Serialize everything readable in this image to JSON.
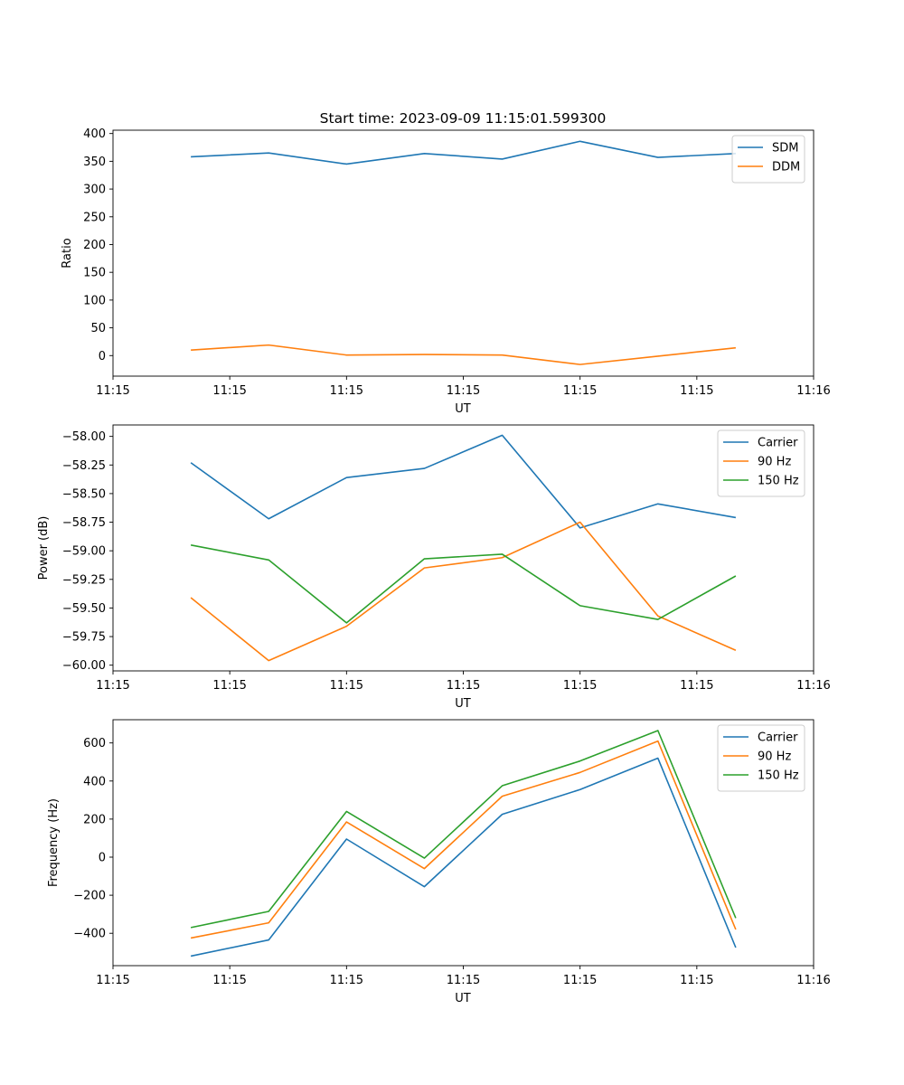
{
  "figure": {
    "title": "Start time: 2023-09-09 11:15:01.599300"
  },
  "chart_data": [
    {
      "type": "line",
      "title": "Start time: 2023-09-09 11:15:01.599300",
      "xlabel": "UT",
      "ylabel": "Ratio",
      "x": [
        0.5,
        1.0,
        1.5,
        2.0,
        2.5,
        3.0,
        3.5,
        4.0
      ],
      "xlim": [
        0.0,
        4.5
      ],
      "xticks": [
        0.0,
        0.75,
        1.5,
        2.25,
        3.0,
        3.75,
        4.5
      ],
      "xtick_labels": [
        "11:15",
        "11:15",
        "11:15",
        "11:15",
        "11:15",
        "11:15",
        "11:16"
      ],
      "ylim": [
        -37,
        406
      ],
      "yticks": [
        0,
        50,
        100,
        150,
        200,
        250,
        300,
        350,
        400
      ],
      "ytick_labels": [
        "0",
        "50",
        "100",
        "150",
        "200",
        "250",
        "300",
        "350",
        "400"
      ],
      "legend": "top-right",
      "series": [
        {
          "name": "SDM",
          "color": "#1f77b4",
          "values": [
            358,
            365,
            345,
            364,
            354,
            386,
            357,
            364
          ]
        },
        {
          "name": "DDM",
          "color": "#ff7f0e",
          "values": [
            10,
            19,
            1,
            2,
            1,
            -16,
            -1,
            14
          ]
        }
      ]
    },
    {
      "type": "line",
      "title": "",
      "xlabel": "UT",
      "ylabel": "Power (dB)",
      "x": [
        0.5,
        1.0,
        1.5,
        2.0,
        2.5,
        3.0,
        3.5,
        4.0
      ],
      "xlim": [
        0.0,
        4.5
      ],
      "xticks": [
        0.0,
        0.75,
        1.5,
        2.25,
        3.0,
        3.75,
        4.5
      ],
      "xtick_labels": [
        "11:15",
        "11:15",
        "11:15",
        "11:15",
        "11:15",
        "11:15",
        "11:16"
      ],
      "ylim": [
        -60.05,
        -57.9
      ],
      "yticks": [
        -60.0,
        -59.75,
        -59.5,
        -59.25,
        -59.0,
        -58.75,
        -58.5,
        -58.25,
        -58.0
      ],
      "ytick_labels": [
        "−60.00",
        "−59.75",
        "−59.50",
        "−59.25",
        "−59.00",
        "−58.75",
        "−58.50",
        "−58.25",
        "−58.00"
      ],
      "legend": "top-right",
      "series": [
        {
          "name": "Carrier",
          "color": "#1f77b4",
          "values": [
            -58.23,
            -58.72,
            -58.36,
            -58.28,
            -57.99,
            -58.8,
            -58.59,
            -58.71
          ]
        },
        {
          "name": "90 Hz",
          "color": "#ff7f0e",
          "values": [
            -59.41,
            -59.96,
            -59.66,
            -59.15,
            -59.06,
            -58.75,
            -59.57,
            -59.87
          ]
        },
        {
          "name": "150 Hz",
          "color": "#2ca02c",
          "values": [
            -58.95,
            -59.08,
            -59.63,
            -59.07,
            -59.03,
            -59.48,
            -59.6,
            -59.22
          ]
        }
      ]
    },
    {
      "type": "line",
      "title": "",
      "xlabel": "UT",
      "ylabel": "Frequency (Hz)",
      "x": [
        0.5,
        1.0,
        1.5,
        2.0,
        2.5,
        3.0,
        3.5,
        4.0
      ],
      "xlim": [
        0.0,
        4.5
      ],
      "xticks": [
        0.0,
        0.75,
        1.5,
        2.25,
        3.0,
        3.75,
        4.5
      ],
      "xtick_labels": [
        "11:15",
        "11:15",
        "11:15",
        "11:15",
        "11:15",
        "11:15",
        "11:16"
      ],
      "ylim": [
        -570,
        722
      ],
      "yticks": [
        -400,
        -200,
        0,
        200,
        400,
        600
      ],
      "ytick_labels": [
        "−400",
        "−200",
        "0",
        "200",
        "400",
        "600"
      ],
      "legend": "top-right",
      "series": [
        {
          "name": "Carrier",
          "color": "#1f77b4",
          "values": [
            -520,
            -435,
            95,
            -155,
            225,
            355,
            520,
            -475
          ]
        },
        {
          "name": "90 Hz",
          "color": "#ff7f0e",
          "values": [
            -425,
            -345,
            185,
            -60,
            320,
            445,
            610,
            -380
          ]
        },
        {
          "name": "150 Hz",
          "color": "#2ca02c",
          "values": [
            -370,
            -285,
            240,
            -5,
            375,
            505,
            665,
            -320
          ]
        }
      ]
    }
  ]
}
